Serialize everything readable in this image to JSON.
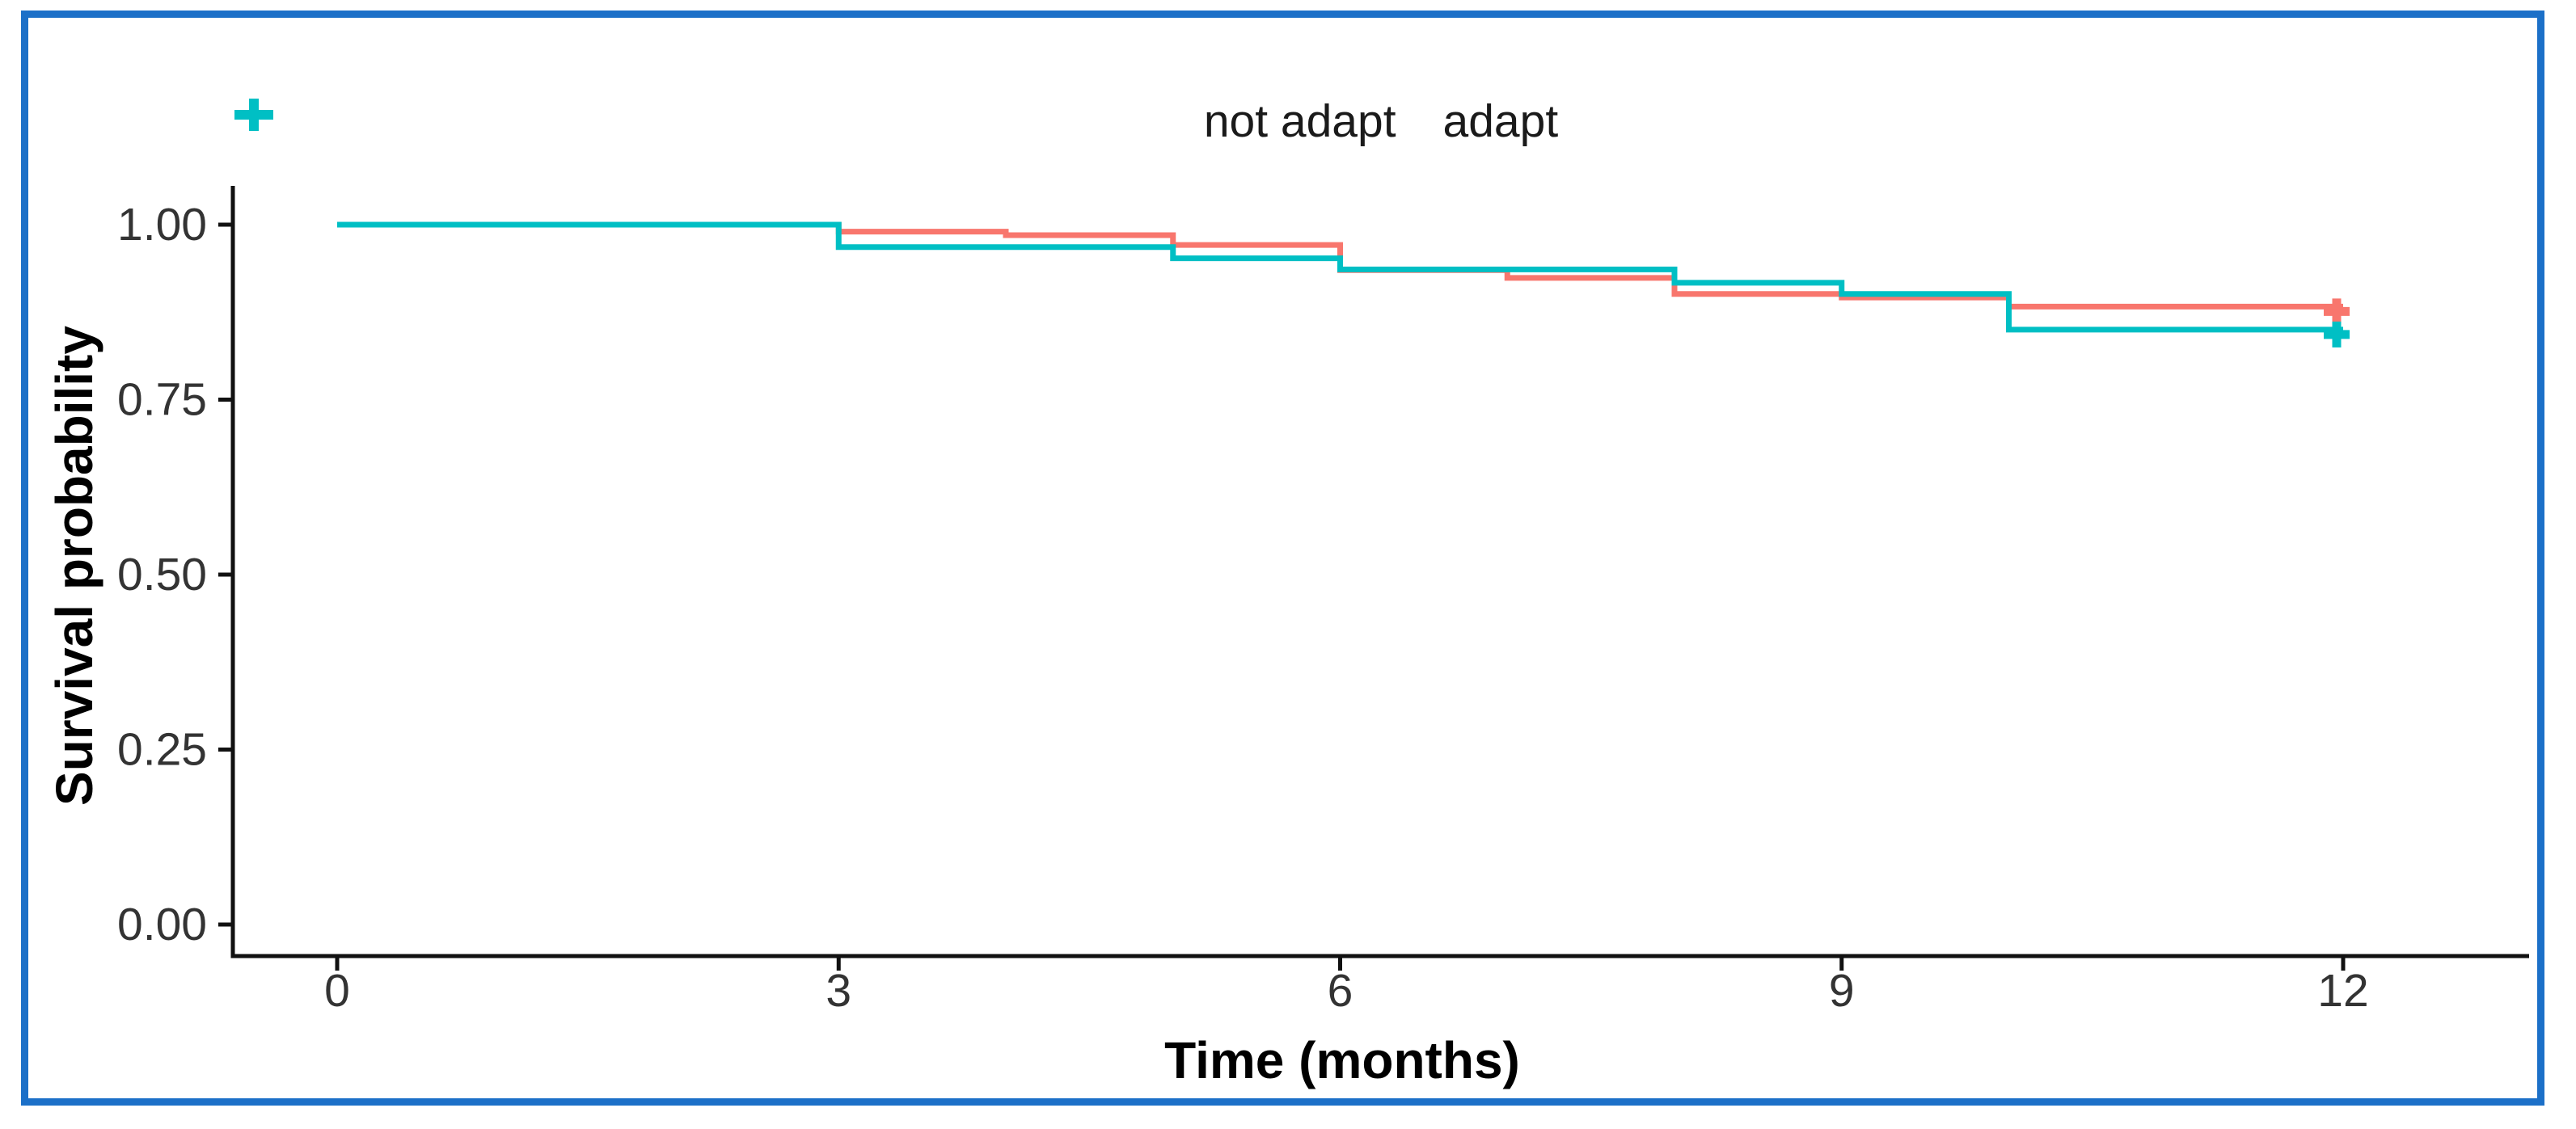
{
  "figure": {
    "border_color": "#1C70C8",
    "background_color": "#ffffff"
  },
  "legend": {
    "position": "top-center",
    "items": [
      {
        "label": "not adapt",
        "color": "#F8766D",
        "symbol": "censor-plus"
      },
      {
        "label": "adapt",
        "color": "#00BFC4",
        "symbol": "censor-plus"
      }
    ]
  },
  "chart_data": {
    "type": "line",
    "subtype": "kaplan-meier-step",
    "title": "",
    "xlabel": "Time (months)",
    "ylabel": "Survival probability",
    "xlim": [
      0,
      12
    ],
    "ylim": [
      0.0,
      1.0
    ],
    "grid": false,
    "legend_position": "top",
    "axis_color": "#111111",
    "tick_label_color": "#333333",
    "x_ticks": [
      {
        "value": 0,
        "label": "0"
      },
      {
        "value": 3,
        "label": "3"
      },
      {
        "value": 6,
        "label": "6"
      },
      {
        "value": 9,
        "label": "9"
      },
      {
        "value": 12,
        "label": "12"
      }
    ],
    "y_ticks": [
      {
        "value": 0.0,
        "label": "0.00"
      },
      {
        "value": 0.25,
        "label": "0.25"
      },
      {
        "value": 0.5,
        "label": "0.50"
      },
      {
        "value": 0.75,
        "label": "0.75"
      },
      {
        "value": 1.0,
        "label": "1.00"
      }
    ],
    "series": [
      {
        "name": "not adapt",
        "color": "#F8766D",
        "end_time": 12,
        "steps": [
          {
            "t": 0,
            "s": 1.0
          },
          {
            "t": 3,
            "s": 0.99
          },
          {
            "t": 4,
            "s": 0.985
          },
          {
            "t": 5,
            "s": 0.971
          },
          {
            "t": 6,
            "s": 0.935
          },
          {
            "t": 7,
            "s": 0.924
          },
          {
            "t": 8,
            "s": 0.901
          },
          {
            "t": 9,
            "s": 0.896
          },
          {
            "t": 10,
            "s": 0.883
          }
        ],
        "censored": [
          {
            "t": 12,
            "s": 0.883
          }
        ]
      },
      {
        "name": "adapt",
        "color": "#00BFC4",
        "end_time": 12,
        "steps": [
          {
            "t": 0,
            "s": 1.0
          },
          {
            "t": 3,
            "s": 0.968
          },
          {
            "t": 5,
            "s": 0.952
          },
          {
            "t": 6,
            "s": 0.936
          },
          {
            "t": 8,
            "s": 0.917
          },
          {
            "t": 9,
            "s": 0.901
          },
          {
            "t": 10,
            "s": 0.85
          }
        ],
        "censored": [
          {
            "t": 12,
            "s": 0.85
          }
        ]
      }
    ]
  }
}
